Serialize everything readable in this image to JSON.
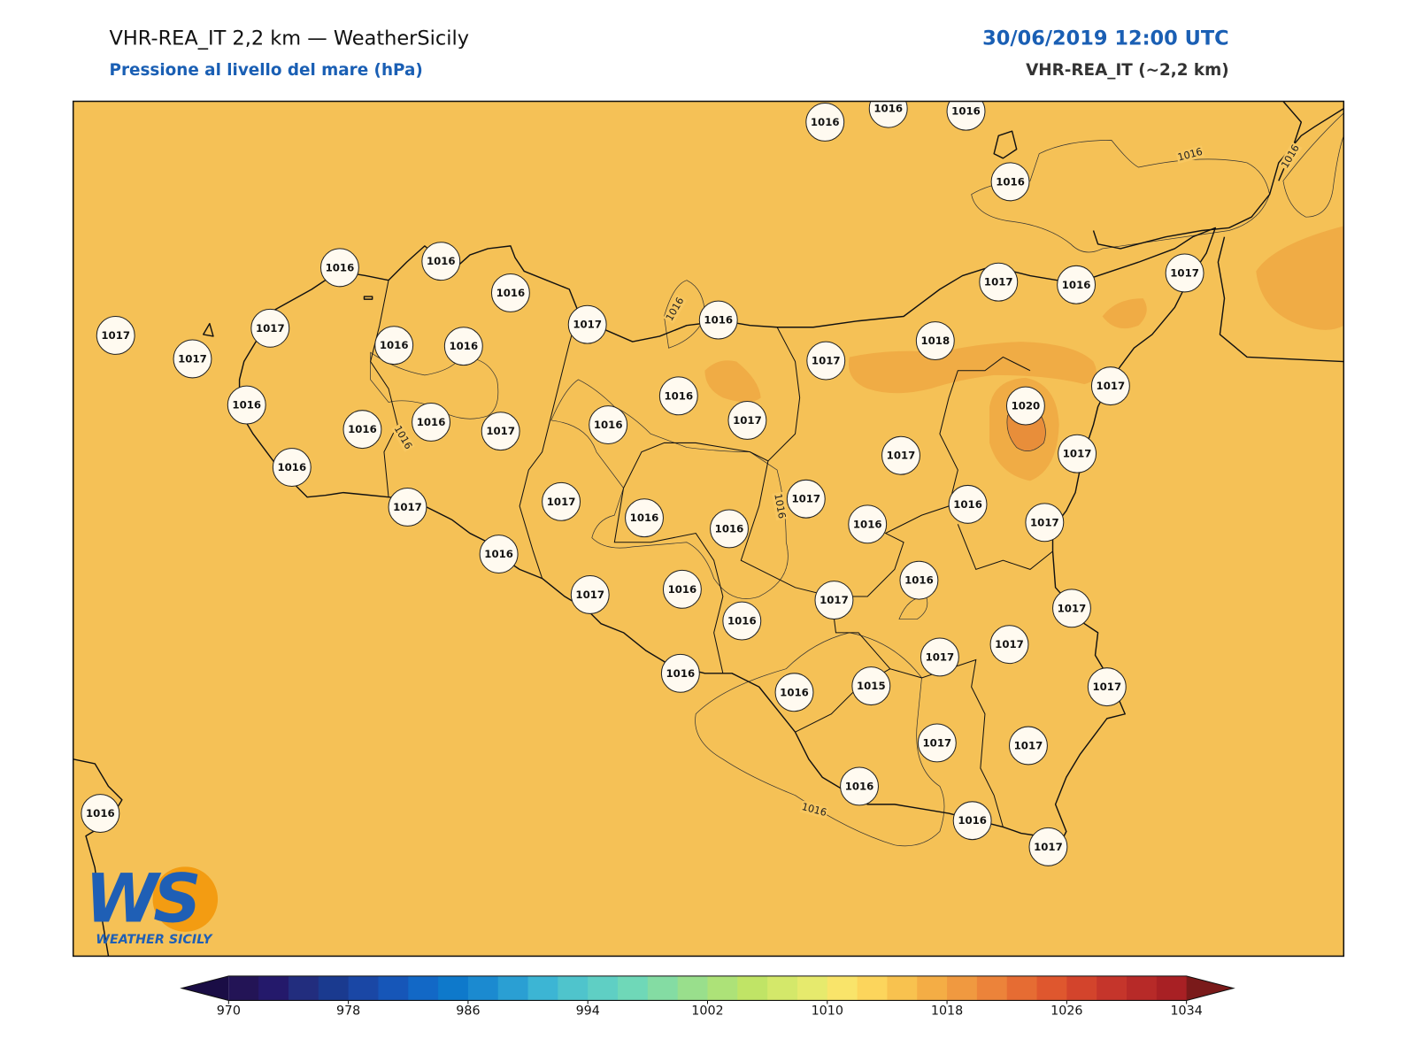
{
  "header": {
    "title": "VHR-REA_IT 2,2 km — WeatherSicily",
    "subtitle": "Pressione al livello del mare (hPa)",
    "valid_time": "30/06/2019 12:00 UTC",
    "model": "VHR-REA_IT (~2,2 km)"
  },
  "stations": [
    1016,
    1016,
    1016,
    1016,
    1016,
    1016,
    1016,
    1017,
    1016,
    1017,
    1016,
    1017,
    1017,
    1017,
    1017,
    1016,
    1016,
    1017,
    1018,
    1017,
    1016,
    1016,
    1020,
    1016,
    1016,
    1017,
    1016,
    1017,
    1017,
    1017,
    1016,
    1017,
    1017,
    1017,
    1016,
    1016,
    1016,
    1016,
    1017,
    1016,
    1017,
    1016,
    1016,
    1017,
    1017,
    1016,
    1017,
    1017,
    1016,
    1016,
    1015,
    1017,
    1017,
    1017,
    1016,
    1016,
    1017,
    1016
  ],
  "contour_labels": [
    1016,
    1016,
    1016,
    1016,
    1016,
    1016
  ],
  "colorbar": {
    "range": [
      970,
      1034
    ],
    "ticks": [
      970,
      978,
      986,
      994,
      1002,
      1010,
      1018,
      1026,
      1034
    ],
    "colors": [
      "#231456",
      "#24196b",
      "#222d7e",
      "#1a3a8f",
      "#1a47a5",
      "#1656b8",
      "#1268c6",
      "#0e79cb",
      "#1b8ad0",
      "#2a9fd3",
      "#3cb5d4",
      "#4fc4cc",
      "#5fcfc4",
      "#6fd8b8",
      "#84dca3",
      "#99df8c",
      "#ade278",
      "#c0e466",
      "#d4e86a",
      "#e6ea6d",
      "#f9e46a",
      "#fcd55c",
      "#f8c24f",
      "#f4ad45",
      "#f09940",
      "#ec833a",
      "#e66c33",
      "#df572e",
      "#d3442c",
      "#c5352b",
      "#b72a28",
      "#a82024"
    ],
    "under_color": "#1a0d45",
    "over_color": "#7a1a1a"
  },
  "logo": {
    "mark": "WS",
    "text": "WEATHER SICILY"
  }
}
